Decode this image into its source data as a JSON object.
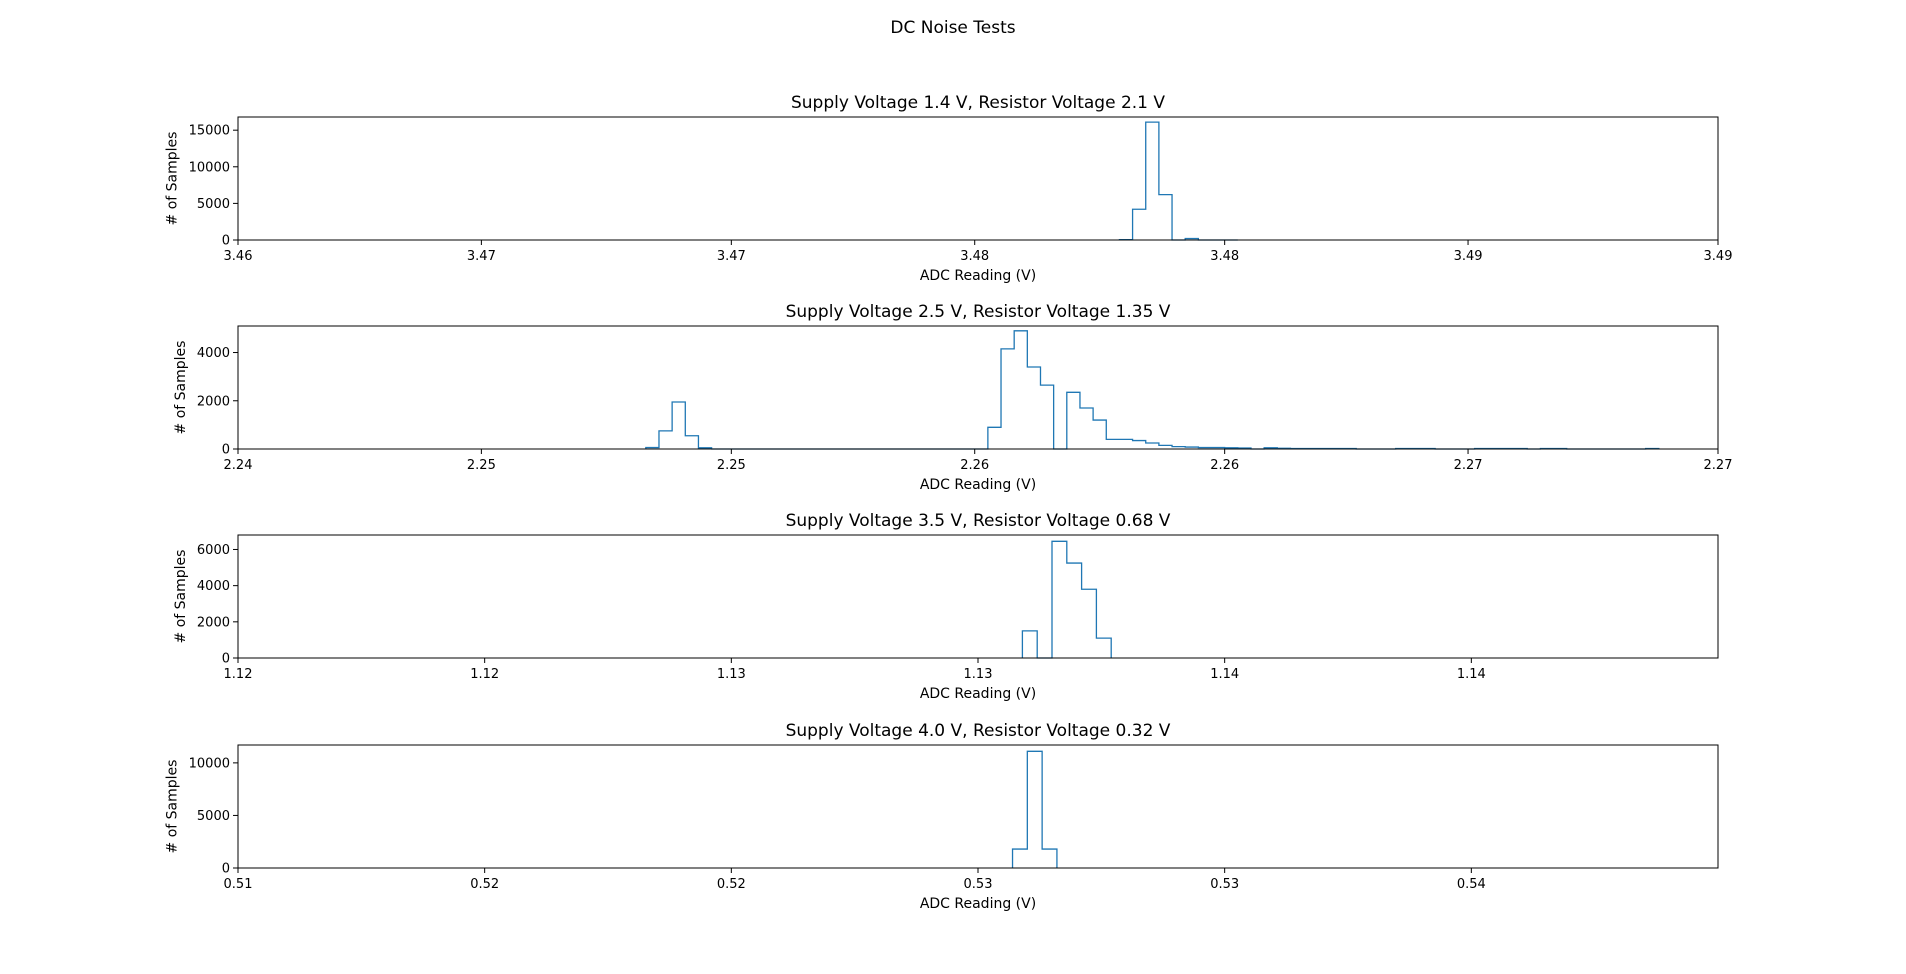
{
  "figure": {
    "title": "DC Noise Tests"
  },
  "chart_data": [
    {
      "type": "histogram",
      "title": "Supply Voltage 1.4 V, Resistor Voltage 2.1 V",
      "xlabel": "ADC Reading (V)",
      "ylabel": "# of Samples",
      "xlim": [
        3.465,
        3.4875
      ],
      "ylim": [
        0,
        16800
      ],
      "x_tick_values": [
        3.465,
        3.4687,
        3.4725,
        3.4762,
        3.48,
        3.4837,
        3.4875
      ],
      "x_tick_labels": [
        "3.46",
        "3.47",
        "3.47",
        "3.48",
        "3.48",
        "3.49",
        "3.49"
      ],
      "y_ticks": [
        0,
        5000,
        10000,
        15000
      ],
      "y_tick_labels": [
        "0",
        "5000",
        "10000",
        "15000"
      ],
      "bin_edges": [
        3.4784,
        3.4786,
        3.4788,
        3.479,
        3.4792,
        3.4794,
        3.4796,
        3.4798,
        3.48,
        3.4802
      ],
      "counts": [
        50,
        4200,
        16100,
        6200,
        0,
        200,
        0,
        0,
        0
      ],
      "color": "#1f77b4"
    },
    {
      "type": "histogram",
      "title": "Supply Voltage 2.5 V, Resistor Voltage 1.35 V",
      "xlabel": "ADC Reading (V)",
      "ylabel": "# of Samples",
      "xlim": [
        2.245,
        2.2675
      ],
      "ylim": [
        0,
        5100
      ],
      "x_tick_values": [
        2.245,
        2.2487,
        2.2525,
        2.2562,
        2.26,
        2.2637,
        2.2675
      ],
      "x_tick_labels": [
        "2.24",
        "2.25",
        "2.25",
        "2.26",
        "2.26",
        "2.27",
        "2.27"
      ],
      "y_ticks": [
        0,
        2000,
        4000
      ],
      "y_tick_labels": [
        "0",
        "2000",
        "4000"
      ],
      "bin_edges": [
        2.2512,
        2.2514,
        2.2516,
        2.2518,
        2.252,
        2.2522,
        2.2524,
        2.2526,
        2.2528,
        2.253,
        2.2532,
        2.2534,
        2.2536,
        2.2538,
        2.254,
        2.2542,
        2.2544,
        2.2546,
        2.2548,
        2.255,
        2.2552,
        2.2554,
        2.2556,
        2.2558,
        2.256,
        2.2562,
        2.2564,
        2.2566,
        2.2568,
        2.257,
        2.2572,
        2.2574,
        2.2576,
        2.2578,
        2.258,
        2.2582,
        2.2584,
        2.2586,
        2.2588,
        2.259,
        2.2592,
        2.2594,
        2.2596,
        2.2598,
        2.26,
        2.2602,
        2.2604,
        2.2606,
        2.2608,
        2.261,
        2.2612,
        2.2614,
        2.2616,
        2.2618,
        2.262,
        2.2622,
        2.2624,
        2.2626,
        2.2628,
        2.263,
        2.2632,
        2.2634,
        2.2636,
        2.2638,
        2.264,
        2.2642,
        2.2644,
        2.2646,
        2.2648,
        2.265,
        2.2652,
        2.2654,
        2.2656,
        2.2658,
        2.266,
        2.2662,
        2.2664,
        2.2666
      ],
      "counts": [
        60,
        750,
        1950,
        550,
        50,
        0,
        0,
        0,
        0,
        0,
        0,
        0,
        0,
        0,
        0,
        0,
        0,
        0,
        0,
        0,
        0,
        0,
        0,
        0,
        0,
        0,
        900,
        4150,
        4900,
        3400,
        2650,
        0,
        2350,
        1700,
        1200,
        400,
        400,
        350,
        250,
        150,
        100,
        80,
        60,
        60,
        50,
        40,
        0,
        50,
        30,
        20,
        20,
        20,
        20,
        20,
        0,
        0,
        0,
        20,
        20,
        20,
        0,
        0,
        0,
        20,
        20,
        20,
        20,
        0,
        20,
        20,
        0,
        0,
        0,
        0,
        0,
        0,
        20
      ],
      "color": "#1f77b4"
    },
    {
      "type": "histogram",
      "title": "Supply Voltage 3.5 V, Resistor Voltage 0.68 V",
      "xlabel": "ADC Reading (V)",
      "ylabel": "# of Samples",
      "xlim": [
        1.1175,
        1.1475
      ],
      "ylim": [
        0,
        6800
      ],
      "x_tick_values": [
        1.1175,
        1.1225,
        1.1275,
        1.1325,
        1.1375,
        1.1425
      ],
      "x_tick_labels": [
        "1.12",
        "1.12",
        "1.13",
        "1.13",
        "1.14",
        "1.14"
      ],
      "y_ticks": [
        0,
        2000,
        4000,
        6000
      ],
      "y_tick_labels": [
        "0",
        "2000",
        "4000",
        "6000"
      ],
      "bin_edges": [
        1.1334,
        1.1337,
        1.134,
        1.1343,
        1.1346,
        1.1349,
        1.1352
      ],
      "counts": [
        1500,
        0,
        6450,
        5250,
        3800,
        1100
      ],
      "color": "#1f77b4"
    },
    {
      "type": "histogram",
      "title": "Supply Voltage 4.0 V, Resistor Voltage 0.32 V",
      "xlabel": "ADC Reading (V)",
      "ylabel": "# of Samples",
      "xlim": [
        0.5125,
        0.5425
      ],
      "ylim": [
        0,
        11700
      ],
      "x_tick_values": [
        0.5125,
        0.5175,
        0.5225,
        0.5275,
        0.5325,
        0.5375
      ],
      "x_tick_labels": [
        "0.51",
        "0.52",
        "0.52",
        "0.53",
        "0.53",
        "0.54"
      ],
      "y_ticks": [
        0,
        5000,
        10000
      ],
      "y_tick_labels": [
        "0",
        "5000",
        "10000"
      ],
      "bin_edges": [
        0.5282,
        0.5285,
        0.5288,
        0.5291
      ],
      "counts": [
        1800,
        11100,
        1800
      ],
      "color": "#1f77b4"
    }
  ]
}
